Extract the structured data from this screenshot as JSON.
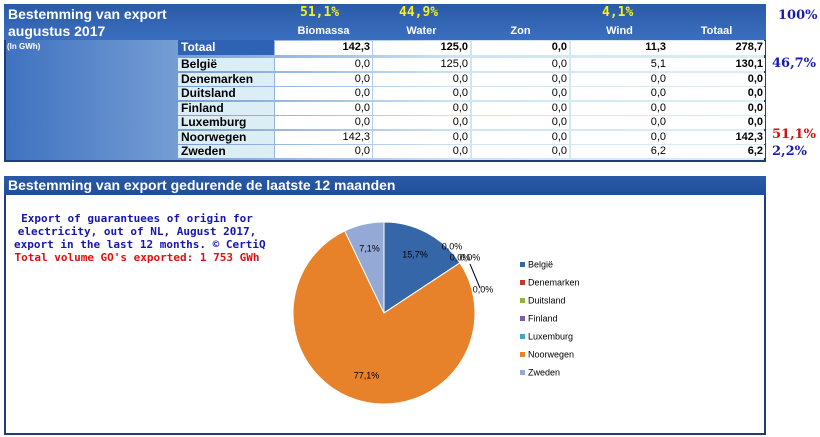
{
  "header": {
    "title": "Bestemming van export",
    "subtitle": "augustus 2017",
    "unit": "(In GWh)",
    "biomassa_share": "51,1%",
    "water_share": "44,9%",
    "wind_share": "4,1%"
  },
  "table": {
    "columns": [
      "Biomassa",
      "Water",
      "Zon",
      "Wind",
      "Totaal"
    ],
    "total_row": {
      "label": "Totaal",
      "cells": [
        "142,3",
        "125,0",
        "0,0",
        "11,3",
        "278,7"
      ]
    },
    "rows": [
      {
        "label": "België",
        "cells": [
          "0,0",
          "125,0",
          "0,0",
          "5,1",
          "130,1"
        ]
      },
      {
        "label": "Denemarken",
        "cells": [
          "0,0",
          "0,0",
          "0,0",
          "0,0",
          "0,0"
        ]
      },
      {
        "label": "Duitsland",
        "cells": [
          "0,0",
          "0,0",
          "0,0",
          "0,0",
          "0,0"
        ]
      },
      {
        "label": "Finland",
        "cells": [
          "0,0",
          "0,0",
          "0,0",
          "0,0",
          "0,0"
        ]
      },
      {
        "label": "Luxemburg",
        "cells": [
          "0,0",
          "0,0",
          "0,0",
          "0,0",
          "0,0"
        ]
      },
      {
        "label": "Noorwegen",
        "cells": [
          "142,3",
          "0,0",
          "0,0",
          "0,0",
          "142,3"
        ]
      },
      {
        "label": "Zweden",
        "cells": [
          "0,0",
          "0,0",
          "0,0",
          "6,2",
          "6,2"
        ]
      }
    ],
    "side_labels": [
      "100%",
      "46,7%",
      "51,1%",
      "2,2%"
    ]
  },
  "chart_data": {
    "type": "pie",
    "title": "Bestemming van export gedurende de laatste 12 maanden",
    "annotation": [
      "Export of guarantuees of origin for",
      "electricity, out of NL, August 2017,",
      "export in the last 12 months. © CertiQ"
    ],
    "annotation_total": "Total volume GO's exported: 1 753 GWh",
    "categories": [
      "België",
      "Denemarken",
      "Duitsland",
      "Finland",
      "Luxemburg",
      "Noorwegen",
      "Zweden"
    ],
    "values": [
      15.7,
      0,
      0,
      0,
      0,
      77.1,
      7.1
    ],
    "value_labels": [
      "15,7%",
      "0,0%",
      "0,0%",
      "0,0%",
      "0,0%",
      "77,1%",
      "7,1%"
    ],
    "colors": [
      "#3567a8",
      "#c0392b",
      "#8db53c",
      "#7b5fa8",
      "#3aa7c4",
      "#e8822a",
      "#94a9d6"
    ]
  }
}
